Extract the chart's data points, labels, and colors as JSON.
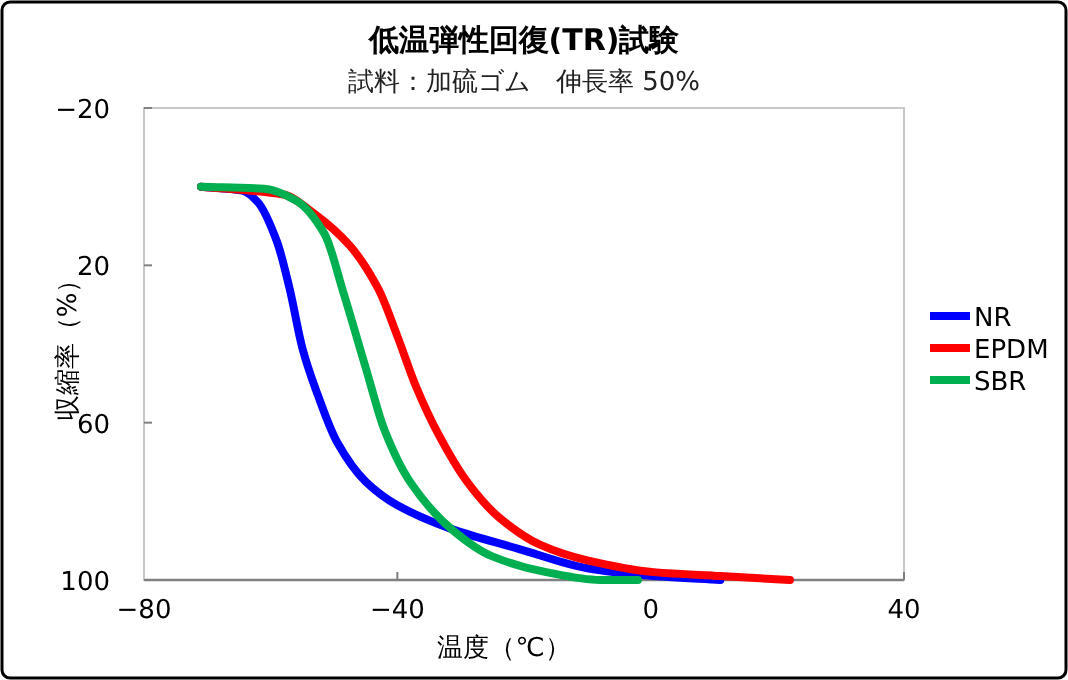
{
  "chart_data": {
    "type": "line",
    "title": "低温弾性回復(TR)試験",
    "subtitle": "試料：加硫ゴム　伸長率 50%",
    "xlabel": "温度（℃）",
    "ylabel": "収縮率（%）",
    "xlim": [
      -80,
      40
    ],
    "xticks": [
      -80,
      -40,
      0,
      40
    ],
    "ylim": [
      100,
      -20
    ],
    "yticks": [
      -20,
      20,
      60,
      100
    ],
    "legend": "right",
    "series": [
      {
        "name": "NR",
        "color": "#0000ff",
        "x": [
          -71,
          -64.5,
          -62,
          -59,
          -57,
          -55,
          -53,
          -49.5,
          -45,
          -40,
          -31.5,
          -21,
          -10,
          0.5,
          11
        ],
        "values": [
          0,
          1,
          4,
          14,
          26,
          41,
          51,
          65,
          75,
          81,
          87,
          92,
          97,
          99,
          100
        ]
      },
      {
        "name": "EPDM",
        "color": "#ff0000",
        "x": [
          -71,
          -58,
          -53,
          -47.5,
          -43,
          -40,
          -37,
          -33.5,
          -29,
          -24,
          -17.5,
          -10,
          0.5,
          11,
          22
        ],
        "values": [
          0,
          2,
          7,
          15,
          26,
          38,
          51,
          63,
          75,
          84,
          91,
          95,
          98,
          99,
          100
        ]
      },
      {
        "name": "SBR",
        "color": "#00b050",
        "x": [
          -71,
          -61,
          -56,
          -51.5,
          -48.5,
          -45,
          -42,
          -38,
          -31.5,
          -25,
          -16.5,
          -8,
          -2
        ],
        "values": [
          0,
          0.5,
          3.5,
          12,
          27,
          46,
          62,
          75,
          87,
          94,
          98,
          100,
          100
        ]
      }
    ]
  }
}
